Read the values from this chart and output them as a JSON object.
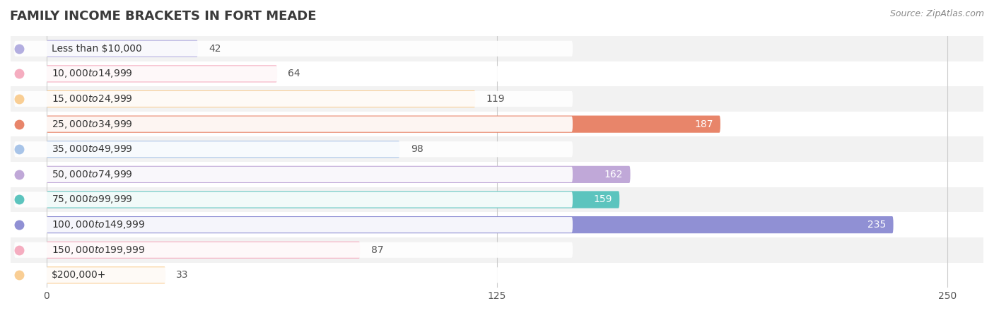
{
  "title": "FAMILY INCOME BRACKETS IN FORT MEADE",
  "source": "Source: ZipAtlas.com",
  "categories": [
    "Less than $10,000",
    "$10,000 to $14,999",
    "$15,000 to $24,999",
    "$25,000 to $34,999",
    "$35,000 to $49,999",
    "$50,000 to $74,999",
    "$75,000 to $99,999",
    "$100,000 to $149,999",
    "$150,000 to $199,999",
    "$200,000+"
  ],
  "values": [
    42,
    64,
    119,
    187,
    98,
    162,
    159,
    235,
    87,
    33
  ],
  "bar_colors": [
    "#b3aee0",
    "#f5adc0",
    "#f9ce94",
    "#e8856a",
    "#a8c4e8",
    "#c0a8d8",
    "#5cc4be",
    "#9090d4",
    "#f5adc0",
    "#f9ce94"
  ],
  "xlim": [
    -10,
    260
  ],
  "xticks": [
    0,
    125,
    250
  ],
  "bar_height": 0.68,
  "label_inside_threshold": 120,
  "background_color": "#ffffff",
  "row_bg_colors": [
    "#f2f2f2",
    "#ffffff"
  ],
  "title_fontsize": 13,
  "source_fontsize": 9,
  "label_fontsize": 10,
  "tick_fontsize": 10,
  "cat_label_fontsize": 10
}
